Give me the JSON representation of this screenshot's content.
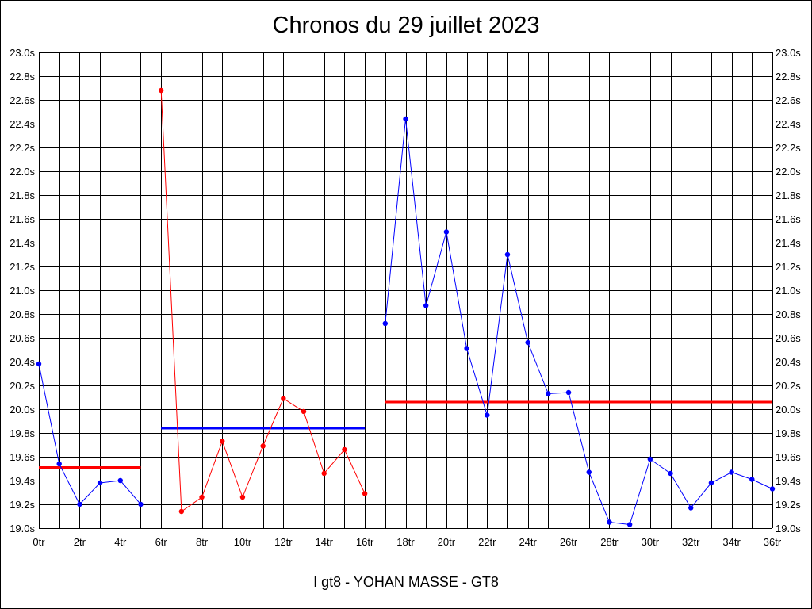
{
  "chart_data": {
    "type": "line",
    "title": "Chronos du 29 juillet 2023",
    "footer": "I gt8 - YOHAN MASSE - GT8",
    "xlabel": "",
    "ylabel": "",
    "xlim": [
      0,
      36
    ],
    "ylim": [
      19.0,
      23.0
    ],
    "x_tick_labels": [
      "0tr",
      "2tr",
      "4tr",
      "6tr",
      "8tr",
      "10tr",
      "12tr",
      "14tr",
      "16tr",
      "18tr",
      "20tr",
      "22tr",
      "24tr",
      "26tr",
      "28tr",
      "30tr",
      "32tr",
      "34tr",
      "36tr"
    ],
    "y_tick_labels": [
      "19.0s",
      "19.2s",
      "19.4s",
      "19.6s",
      "19.8s",
      "20.0s",
      "20.2s",
      "20.4s",
      "20.6s",
      "20.8s",
      "21.0s",
      "21.2s",
      "21.4s",
      "21.6s",
      "21.8s",
      "22.0s",
      "22.2s",
      "22.4s",
      "22.6s",
      "22.8s",
      "23.0s"
    ],
    "grid": true,
    "series": [
      {
        "color": "#0000ff",
        "x": [
          0,
          1,
          2,
          3,
          4,
          5
        ],
        "y": [
          20.38,
          19.54,
          19.2,
          19.38,
          19.4,
          19.2
        ]
      },
      {
        "color": "#ff0000",
        "x": [
          6,
          7,
          8,
          9,
          10,
          11,
          12,
          13,
          14,
          15,
          16
        ],
        "y": [
          22.68,
          19.14,
          19.26,
          19.73,
          19.26,
          19.69,
          20.09,
          19.98,
          19.46,
          19.66,
          19.29
        ]
      },
      {
        "color": "#0000ff",
        "x": [
          17,
          18,
          19,
          20,
          21,
          22,
          23,
          24,
          25,
          26,
          27,
          28,
          29,
          30,
          31,
          32,
          33,
          34,
          35,
          36
        ],
        "y": [
          20.72,
          22.44,
          20.87,
          21.49,
          20.51,
          19.95,
          21.3,
          20.56,
          20.13,
          20.14,
          19.47,
          19.05,
          19.03,
          19.58,
          19.46,
          19.17,
          19.38,
          19.47,
          19.41,
          19.33
        ]
      }
    ],
    "average_lines": [
      {
        "color": "#ff0000",
        "x": [
          0,
          5
        ],
        "y": 19.51
      },
      {
        "color": "#0000ff",
        "x": [
          6,
          16
        ],
        "y": 19.84
      },
      {
        "color": "#ff0000",
        "x": [
          17,
          36
        ],
        "y": 20.06
      }
    ]
  }
}
